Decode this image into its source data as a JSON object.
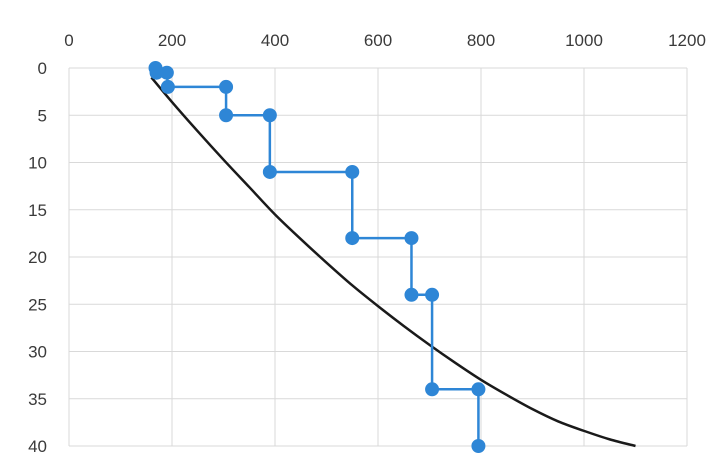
{
  "chart_data": {
    "type": "line",
    "x_axis": {
      "ticks": [
        0,
        200,
        400,
        600,
        800,
        1000,
        1200
      ],
      "range": [
        0,
        1200
      ],
      "position": "top"
    },
    "y_axis": {
      "ticks": [
        0,
        5,
        10,
        15,
        20,
        25,
        30,
        35,
        40
      ],
      "range": [
        0,
        40
      ],
      "reversed": true
    },
    "grid": true,
    "series": [
      {
        "style": "step-with-markers",
        "color": "#2e86d6",
        "points": [
          {
            "x": 168,
            "y": 0.0
          },
          {
            "x": 170,
            "y": 0.5
          },
          {
            "x": 190,
            "y": 0.5
          },
          {
            "x": 192,
            "y": 2
          },
          {
            "x": 305,
            "y": 2
          },
          {
            "x": 305,
            "y": 5
          },
          {
            "x": 390,
            "y": 5
          },
          {
            "x": 390,
            "y": 11
          },
          {
            "x": 550,
            "y": 11
          },
          {
            "x": 550,
            "y": 18
          },
          {
            "x": 665,
            "y": 18
          },
          {
            "x": 665,
            "y": 24
          },
          {
            "x": 705,
            "y": 24
          },
          {
            "x": 705,
            "y": 34
          },
          {
            "x": 795,
            "y": 34
          },
          {
            "x": 795,
            "y": 40
          }
        ]
      },
      {
        "style": "smooth-line",
        "color": "#1a1a1a",
        "points": [
          {
            "x": 160,
            "y": 1
          },
          {
            "x": 200,
            "y": 3.6
          },
          {
            "x": 250,
            "y": 6.7
          },
          {
            "x": 300,
            "y": 9.7
          },
          {
            "x": 350,
            "y": 12.6
          },
          {
            "x": 400,
            "y": 15.5
          },
          {
            "x": 450,
            "y": 18.1
          },
          {
            "x": 500,
            "y": 20.6
          },
          {
            "x": 550,
            "y": 23
          },
          {
            "x": 600,
            "y": 25.2
          },
          {
            "x": 650,
            "y": 27.3
          },
          {
            "x": 700,
            "y": 29.3
          },
          {
            "x": 750,
            "y": 31.2
          },
          {
            "x": 800,
            "y": 33
          },
          {
            "x": 850,
            "y": 34.6
          },
          {
            "x": 900,
            "y": 36.1
          },
          {
            "x": 950,
            "y": 37.4
          },
          {
            "x": 1000,
            "y": 38.4
          },
          {
            "x": 1050,
            "y": 39.3
          },
          {
            "x": 1100,
            "y": 40
          }
        ]
      }
    ]
  }
}
